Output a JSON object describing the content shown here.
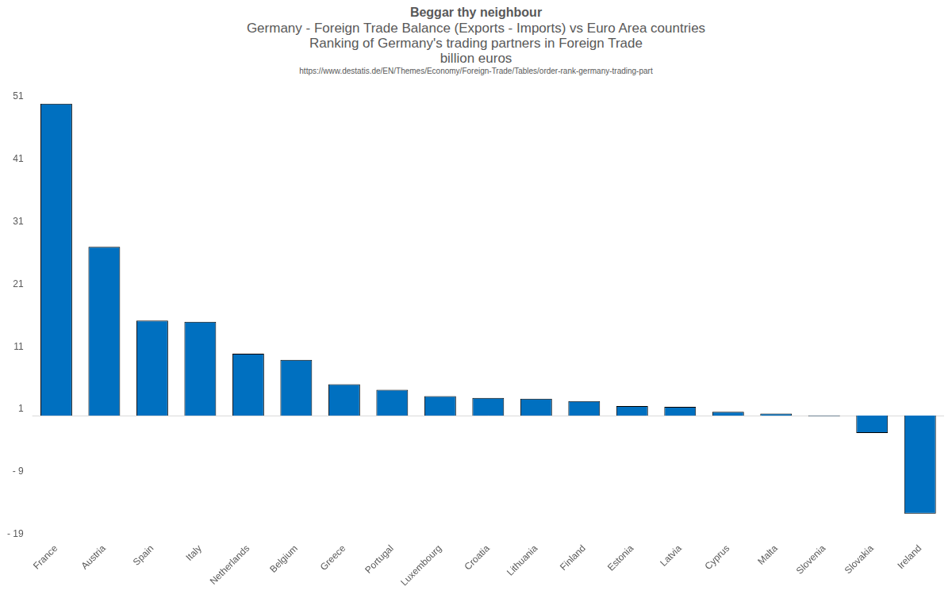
{
  "chart_data": {
    "type": "bar",
    "title": "Beggar thy neighbour",
    "subtitle": [
      "Germany - Foreign Trade Balance (Exports - Imports) vs Euro Area countries",
      "Ranking of Germany's trading partners in Foreign Trade",
      "billion euros"
    ],
    "source": "https://www.destatis.de/EN/Themes/Economy/Foreign-Trade/Tables/order-rank-germany-trading-part",
    "categories": [
      "France",
      "Austria",
      "Spain",
      "Italy",
      "Netherlands",
      "Belgium",
      "Greece",
      "Portugal",
      "Luxembourg",
      "Croatia",
      "Lithuania",
      "Finland",
      "Estonia",
      "Latvia",
      "Cyprus",
      "Malta",
      "Slovenia",
      "Slovakia",
      "Ireland"
    ],
    "values": [
      49.9,
      27.0,
      15.2,
      15.0,
      9.9,
      8.9,
      5.0,
      4.1,
      3.1,
      2.8,
      2.7,
      2.3,
      1.5,
      1.4,
      0.6,
      0.3,
      -0.1,
      -2.8,
      -15.7
    ],
    "color": "#0070c0",
    "ylim": [
      -19,
      51
    ],
    "yticks": [
      {
        "value": -19,
        "label": "- 19"
      },
      {
        "value": -9,
        "label": "- 9"
      },
      1,
      11,
      21,
      31,
      41,
      51
    ],
    "grid": false
  }
}
